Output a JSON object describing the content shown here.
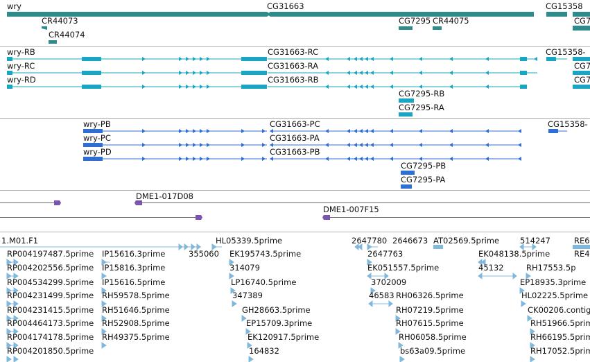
{
  "colors": {
    "gene": "#2e8b8b",
    "transcript": "#19a6c3",
    "protein": "#2f6fd1",
    "bac": "#7a55b0",
    "est": "#80b8dc",
    "divider": "#b0b0b0",
    "text": "#111111"
  },
  "tracks": [
    {
      "name": "gene-track",
      "items": [
        {
          "label": "wry"
        },
        {
          "label": "CG31663"
        },
        {
          "label": "CG15358"
        },
        {
          "label": "CR44073"
        },
        {
          "label": "CR44074"
        },
        {
          "label": "CG7295"
        },
        {
          "label": "CR44075"
        }
      ]
    },
    {
      "name": "transcript-track",
      "items": [
        {
          "label": "wry-RB"
        },
        {
          "label": "wry-RC"
        },
        {
          "label": "wry-RD"
        },
        {
          "label": "CG31663-RC"
        },
        {
          "label": "CG31663-RA"
        },
        {
          "label": "CG31663-RB"
        },
        {
          "label": "CG15358-"
        },
        {
          "label": "CG7295-RB"
        },
        {
          "label": "CG7295-RA"
        }
      ]
    },
    {
      "name": "protein-track",
      "items": [
        {
          "label": "wry-PB"
        },
        {
          "label": "wry-PC"
        },
        {
          "label": "wry-PD"
        },
        {
          "label": "CG31663-PC"
        },
        {
          "label": "CG31663-PA"
        },
        {
          "label": "CG31663-PB"
        },
        {
          "label": "CG15358-"
        },
        {
          "label": "CG7295-PB"
        },
        {
          "label": "CG7295-PA"
        }
      ]
    },
    {
      "name": "bac-track",
      "items": [
        {
          "label": "DME1-017D08"
        },
        {
          "label": "DME1-007F15"
        }
      ]
    },
    {
      "name": "est-track",
      "items": [
        {
          "label": "1.M01.F1"
        },
        {
          "label": "HL05339.5prime"
        },
        {
          "label": "2647780"
        },
        {
          "label": "2646673"
        },
        {
          "label": "AT02569.5prime"
        },
        {
          "label": "514247"
        },
        {
          "label": "RE6"
        },
        {
          "label": "RP004197487.5prime"
        },
        {
          "label": "IP15616.3prime"
        },
        {
          "label": "355060"
        },
        {
          "label": "EK195743.5prime"
        },
        {
          "label": "2647763"
        },
        {
          "label": "EK048138.5prime"
        },
        {
          "label": "RE4"
        },
        {
          "label": "RP004202556.5prime"
        },
        {
          "label": "IP15816.3prime"
        },
        {
          "label": "314079"
        },
        {
          "label": "EK051557.5prime"
        },
        {
          "label": "45132"
        },
        {
          "label": "RH17553.5p"
        },
        {
          "label": "RP004534299.5prime"
        },
        {
          "label": "IP15616.5prime"
        },
        {
          "label": "LP16740.5prime"
        },
        {
          "label": "3702009"
        },
        {
          "label": "EP18935.3prime"
        },
        {
          "label": "RP004231499.5prime"
        },
        {
          "label": "RH59578.5prime"
        },
        {
          "label": "347389"
        },
        {
          "label": "46583"
        },
        {
          "label": "RH06326.5prime"
        },
        {
          "label": "HL02225.5prime"
        },
        {
          "label": "RP004231415.5prime"
        },
        {
          "label": "RH51646.5prime"
        },
        {
          "label": "GH28663.5prime"
        },
        {
          "label": "RH07219.5prime"
        },
        {
          "label": "CK00206.contig"
        },
        {
          "label": "RP004464173.5prime"
        },
        {
          "label": "RH52908.5prime"
        },
        {
          "label": "EP15709.3prime"
        },
        {
          "label": "RH07615.5prime"
        },
        {
          "label": "RH51966.5prim"
        },
        {
          "label": "RP004174178.5prime"
        },
        {
          "label": "RH49375.5prime"
        },
        {
          "label": "EK120917.5prime"
        },
        {
          "label": "RH06058.5prime"
        },
        {
          "label": "RH66195.5prim"
        },
        {
          "label": "RP004201850.5prime"
        },
        {
          "label": "164832"
        },
        {
          "label": "bs63a09.5prime"
        },
        {
          "label": "RH17052.5prim"
        }
      ]
    }
  ]
}
